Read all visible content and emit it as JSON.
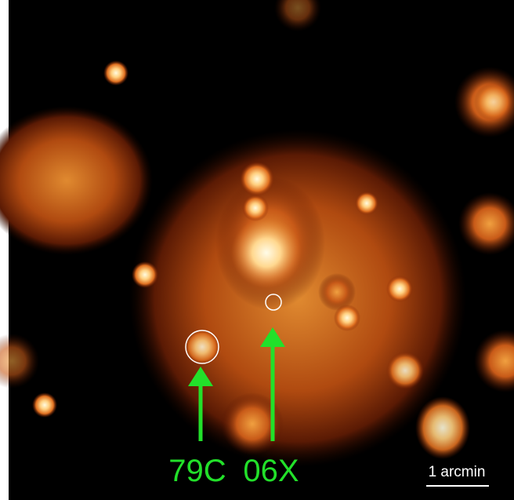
{
  "labels": [
    "79C",
    "06X"
  ],
  "scale_bar": {
    "label": "1 arcmin"
  }
}
